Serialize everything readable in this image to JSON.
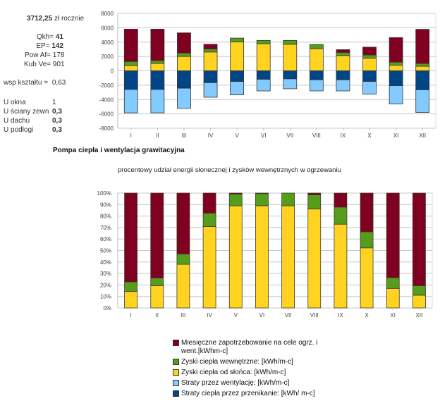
{
  "summary": {
    "annual_cost_value": "3712,25",
    "annual_cost_unit": "zł rocznie",
    "qkh_label": "Qkh=",
    "qkh_value": "41",
    "ep_label": "EP=",
    "ep_value": "142",
    "pow_label": "Pow Af=",
    "pow_value": "178",
    "kub_label": "Kub Ve=",
    "kub_value": "901",
    "shape_label": "wsp kształtu =",
    "shape_value": "0,63",
    "u_values": [
      {
        "label": "U okna",
        "value": "1",
        "bold": false
      },
      {
        "label": "U ściany zewn",
        "value": "0,3",
        "bold": true
      },
      {
        "label": "U dachu",
        "value": "0,3",
        "bold": true
      },
      {
        "label": "U podłogi",
        "value": "0,3",
        "bold": true
      }
    ]
  },
  "section_title": "Pompa ciepła i wentylacja grawitacyjna",
  "colors": {
    "demand": "#7f0021",
    "internal_gains": "#579d1c",
    "solar_gains": "#ffd320",
    "ventilation_losses": "#83caff",
    "transmission_losses": "#004586"
  },
  "legend": [
    {
      "key": "demand",
      "label": "Miesięczne zapotrzebowanie na cele ogrz. i went.[kWhm-c]"
    },
    {
      "key": "internal_gains",
      "label": "Zyski ciepła wewnętrzne: [kWh/m-c]"
    },
    {
      "key": "solar_gains",
      "label": "Zyski ciepła od słońca: [kWh/m-c]"
    },
    {
      "key": "ventilation_losses",
      "label": "Straty przez wentylację: [kWh/m-c]"
    },
    {
      "key": "transmission_losses",
      "label": "Straty  ciepła przez przenikanie: [kWh/ m-c]"
    }
  ],
  "chart_data": [
    {
      "type": "bar",
      "stacked": true,
      "title": "",
      "xlabel": "",
      "ylabel": "",
      "categories": [
        "I",
        "II",
        "III",
        "IV",
        "V",
        "VI",
        "VII",
        "VIII",
        "IX",
        "X",
        "XI",
        "XII"
      ],
      "ylim": [
        -8000,
        8000
      ],
      "yticks": [
        8000,
        6000,
        4000,
        2000,
        0,
        -2000,
        -4000,
        -6000,
        -8000
      ],
      "grid": true,
      "legend": "bottom",
      "series": [
        {
          "name": "Zyski ciepła od słońca: [kWh/m-c]",
          "key": "solar_gains",
          "values": [
            750,
            1030,
            2000,
            2620,
            4040,
            3770,
            3700,
            3080,
            2130,
            1770,
            790,
            640
          ]
        },
        {
          "name": "Zyski ciepła wewnętrzne: [kWh/m-c]",
          "key": "internal_gains",
          "values": [
            550,
            410,
            490,
            430,
            520,
            470,
            540,
            590,
            430,
            430,
            420,
            380
          ]
        },
        {
          "name": "Miesięczne zapotrzebowanie na cele ogrz. i went.[kWhm-c]",
          "key": "demand",
          "values": [
            4500,
            4360,
            2800,
            650,
            0,
            0,
            0,
            0,
            390,
            1100,
            3420,
            4760
          ]
        },
        {
          "name": "Straty  ciepła przez przenikanie: [kWh/ m-c]",
          "key": "transmission_losses",
          "values": [
            -2600,
            -2600,
            -2420,
            -1650,
            -1480,
            -1180,
            -1120,
            -1250,
            -1250,
            -1480,
            -2070,
            -2640
          ]
        },
        {
          "name": "Straty przez wentylację: [kWh/m-c]",
          "key": "ventilation_losses",
          "values": [
            -3250,
            -3250,
            -2800,
            -2030,
            -1870,
            -1620,
            -1380,
            -1550,
            -1550,
            -1770,
            -2550,
            -3160
          ]
        }
      ]
    },
    {
      "type": "bar",
      "stacked": true,
      "percent": true,
      "title": "procentowy udział energii słonecznej i zysków wewnętrznych w ogrzewaniu",
      "xlabel": "",
      "ylabel": "",
      "categories": [
        "I",
        "II",
        "III",
        "IV",
        "V",
        "VI",
        "VII",
        "VIII",
        "IX",
        "X",
        "XI",
        "XII"
      ],
      "ylim": [
        0,
        100
      ],
      "yticks": [
        "0%",
        "10%",
        "20%",
        "30%",
        "40%",
        "50%",
        "60%",
        "70%",
        "80%",
        "90%",
        "100%"
      ],
      "grid": true,
      "series": [
        {
          "name": "Zyski ciepła od słońca",
          "key": "solar_gains",
          "values": [
            14.3,
            19.4,
            38.0,
            70.9,
            88.9,
            89.0,
            88.9,
            86.2,
            72.9,
            52.3,
            17.0,
            11.1
          ]
        },
        {
          "name": "Zyski ciepła wewnętrzne",
          "key": "internal_gains",
          "values": [
            8.4,
            6.7,
            9.0,
            11.7,
            10.3,
            10.5,
            11.1,
            12.3,
            14.9,
            14.0,
            9.4,
            8.2
          ]
        },
        {
          "name": "Miesięczne zapotrzebowanie",
          "key": "demand",
          "values": [
            77.3,
            73.9,
            53.0,
            17.4,
            0.8,
            0.5,
            0.0,
            1.5,
            12.2,
            33.7,
            73.6,
            80.7
          ]
        }
      ]
    }
  ]
}
